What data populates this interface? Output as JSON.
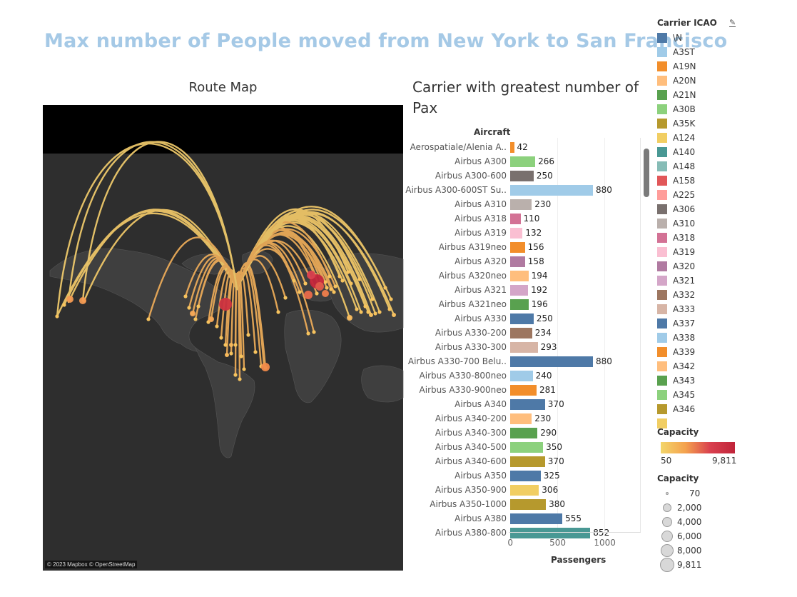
{
  "page_title": "Max number of People moved from New York to San Francisco",
  "map": {
    "title": "Route Map",
    "attribution": "© 2023 Mapbox © OpenStreetMap",
    "land_color": "#3f3f3f",
    "water_color": "#2e2e2e",
    "arc_color": "#f5c65e"
  },
  "chart_data": {
    "type": "bar",
    "title": "Carrier with greatest number of Pax",
    "ylabel": "Aircraft",
    "xlabel": "Passengers",
    "xlim": [
      0,
      1400
    ],
    "xticks": [
      0,
      500,
      1000
    ],
    "categories": [
      "Aerospatiale/Alenia A..",
      "Airbus A300",
      "Airbus A300-600",
      "Airbus A300-600ST Su..",
      "Airbus A310",
      "Airbus A318",
      "Airbus A319",
      "Airbus A319neo",
      "Airbus A320",
      "Airbus A320neo",
      "Airbus A321",
      "Airbus A321neo",
      "Airbus A330",
      "Airbus A330-200",
      "Airbus A330-300",
      "Airbus A330-700 Belu..",
      "Airbus A330-800neo",
      "Airbus A330-900neo",
      "Airbus A340",
      "Airbus A340-200",
      "Airbus A340-300",
      "Airbus A340-500",
      "Airbus A340-600",
      "Airbus A350",
      "Airbus A350-900",
      "Airbus A350-1000",
      "Airbus A380",
      "Airbus A380-800"
    ],
    "values": [
      42,
      266,
      250,
      880,
      230,
      110,
      132,
      156,
      158,
      194,
      192,
      196,
      250,
      234,
      293,
      880,
      240,
      281,
      370,
      230,
      290,
      350,
      370,
      325,
      306,
      380,
      555,
      852
    ],
    "bar_colors": [
      "#f28e2b",
      "#8cd17d",
      "#79706e",
      "#a0cbe8",
      "#bab0ac",
      "#d37295",
      "#fabfd2",
      "#f28e2b",
      "#b07aa1",
      "#ffbe7d",
      "#d4a6c8",
      "#59a14f",
      "#4e79a7",
      "#9d7660",
      "#d7b5a6",
      "#4e79a7",
      "#a0cbe8",
      "#f28e2b",
      "#4e79a7",
      "#ffbe7d",
      "#59a14f",
      "#8cd17d",
      "#b6992d",
      "#4e79a7",
      "#f1ce63",
      "#b6992d",
      "#4e79a7",
      "#499894"
    ],
    "value_labels": [
      "42",
      "266",
      "250",
      "880",
      "230",
      "110",
      "132",
      "156",
      "158",
      "194",
      "192",
      "196",
      "250",
      "234",
      "293",
      "880",
      "240",
      "281",
      "370",
      "230",
      "290",
      "350",
      "370",
      "325",
      "306",
      "380",
      "555",
      "852"
    ]
  },
  "legend": {
    "title": "Carrier ICAO",
    "items": [
      {
        "label": "\\N",
        "color": "#4e79a7"
      },
      {
        "label": "A3ST",
        "color": "#a0cbe8"
      },
      {
        "label": "A19N",
        "color": "#f28e2b"
      },
      {
        "label": "A20N",
        "color": "#ffbe7d"
      },
      {
        "label": "A21N",
        "color": "#59a14f"
      },
      {
        "label": "A30B",
        "color": "#8cd17d"
      },
      {
        "label": "A35K",
        "color": "#b6992d"
      },
      {
        "label": "A124",
        "color": "#f1ce63"
      },
      {
        "label": "A140",
        "color": "#499894"
      },
      {
        "label": "A148",
        "color": "#86bcb6"
      },
      {
        "label": "A158",
        "color": "#e15759"
      },
      {
        "label": "A225",
        "color": "#ff9d9a"
      },
      {
        "label": "A306",
        "color": "#79706e"
      },
      {
        "label": "A310",
        "color": "#bab0ac"
      },
      {
        "label": "A318",
        "color": "#d37295"
      },
      {
        "label": "A319",
        "color": "#fabfd2"
      },
      {
        "label": "A320",
        "color": "#b07aa1"
      },
      {
        "label": "A321",
        "color": "#d4a6c8"
      },
      {
        "label": "A332",
        "color": "#9d7660"
      },
      {
        "label": "A333",
        "color": "#d7b5a6"
      },
      {
        "label": "A337",
        "color": "#4e79a7"
      },
      {
        "label": "A338",
        "color": "#a0cbe8"
      },
      {
        "label": "A339",
        "color": "#f28e2b"
      },
      {
        "label": "A342",
        "color": "#ffbe7d"
      },
      {
        "label": "A343",
        "color": "#59a14f"
      },
      {
        "label": "A345",
        "color": "#8cd17d"
      },
      {
        "label": "A346",
        "color": "#b6992d"
      },
      {
        "label": "",
        "color": "#f1ce63"
      }
    ]
  },
  "capacity_color": {
    "title": "Capacity",
    "min": "50",
    "max": "9,811",
    "colors": [
      "#f3d66a",
      "#c0243a"
    ]
  },
  "capacity_size": {
    "title": "Capacity",
    "items": [
      "70",
      "2,000",
      "4,000",
      "6,000",
      "8,000",
      "9,811"
    ]
  }
}
